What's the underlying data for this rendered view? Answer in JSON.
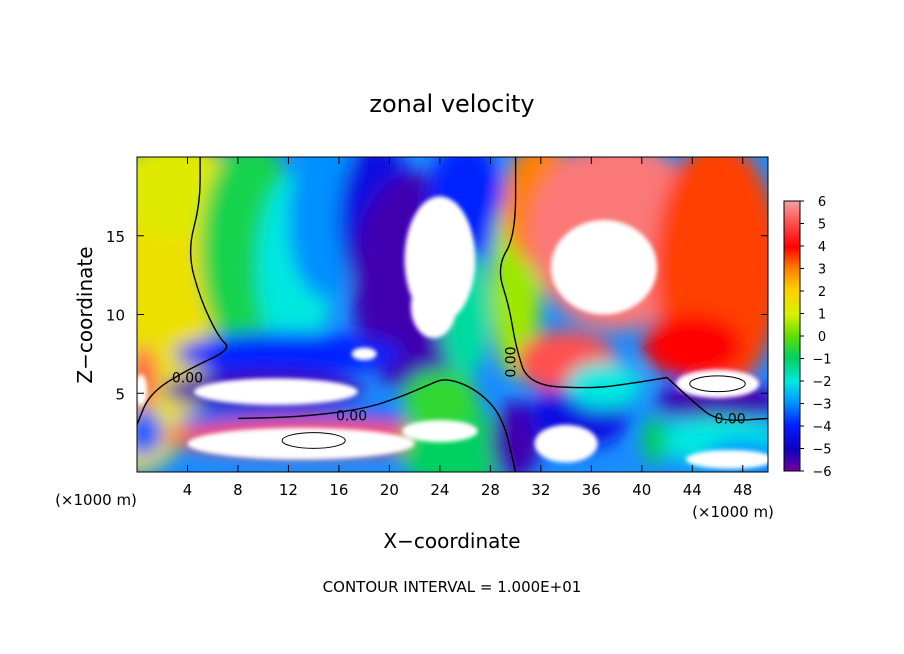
{
  "chart_data": {
    "type": "heatmap",
    "title": "zonal velocity",
    "xlabel": "X−coordinate",
    "ylabel": "Z−coordinate",
    "x_unit_left": "(×1000 m)",
    "x_unit_right": "(×1000 m)",
    "xlim": [
      0,
      50
    ],
    "ylim": [
      0,
      20
    ],
    "x_ticks": [
      4,
      8,
      12,
      16,
      20,
      24,
      28,
      32,
      36,
      40,
      44,
      48
    ],
    "y_ticks": [
      5,
      10,
      15
    ],
    "colorbar": {
      "ticks": [
        6,
        5,
        4,
        3,
        2,
        1,
        0,
        -1,
        -2,
        -3,
        -4,
        -5,
        -6
      ],
      "range": [
        -6,
        6
      ]
    },
    "contour_labels": [
      {
        "text": "0.00",
        "x": 4,
        "y": 6
      },
      {
        "text": "0.00",
        "x": 17,
        "y": 3.6
      },
      {
        "text": "0.00",
        "x": 30,
        "y": 7.3
      },
      {
        "text": "0.00",
        "x": 47,
        "y": 3.4
      }
    ],
    "regions": [
      {
        "x": 0,
        "y": 10,
        "value": 1.5,
        "rx": 6,
        "ry": 10
      },
      {
        "x": 3,
        "y": 18,
        "value": 1.2,
        "rx": 5,
        "ry": 3
      },
      {
        "x": 9,
        "y": 14,
        "value": -0.8,
        "rx": 4,
        "ry": 7
      },
      {
        "x": 12.5,
        "y": 13,
        "value": -2,
        "rx": 3,
        "ry": 6
      },
      {
        "x": 15,
        "y": 16,
        "value": -3,
        "rx": 3,
        "ry": 5
      },
      {
        "x": 19,
        "y": 16,
        "value": -4.5,
        "rx": 3,
        "ry": 5
      },
      {
        "x": 22,
        "y": 12,
        "value": -5.5,
        "rx": 5,
        "ry": 7
      },
      {
        "x": 26,
        "y": 17,
        "value": -4,
        "rx": 3,
        "ry": 4
      },
      {
        "x": 26,
        "y": 10,
        "value": -1.5,
        "rx": 2,
        "ry": 4
      },
      {
        "x": 30,
        "y": 12,
        "value": 0.5,
        "rx": 2,
        "ry": 6
      },
      {
        "x": 32,
        "y": 17,
        "value": 3,
        "rx": 3,
        "ry": 4
      },
      {
        "x": 38,
        "y": 15,
        "value": 5.5,
        "rx": 7,
        "ry": 6
      },
      {
        "x": 46,
        "y": 13,
        "value": 3.5,
        "rx": 5,
        "ry": 8
      },
      {
        "x": 34,
        "y": 7,
        "value": 5,
        "rx": 4,
        "ry": 2
      },
      {
        "x": 44,
        "y": 8,
        "value": 4,
        "rx": 4,
        "ry": 2
      },
      {
        "x": 12,
        "y": 7.5,
        "value": -4,
        "rx": 9,
        "ry": 1.4
      },
      {
        "x": 10,
        "y": 5.2,
        "value": -5.5,
        "rx": 8,
        "ry": 1.2
      },
      {
        "x": 13,
        "y": 3.3,
        "value": -3.5,
        "rx": 10,
        "ry": 0.8
      },
      {
        "x": 14,
        "y": 2.2,
        "value": 5,
        "rx": 12,
        "ry": 1.1
      },
      {
        "x": 25,
        "y": 1.5,
        "value": -1,
        "rx": 4,
        "ry": 3
      },
      {
        "x": 24,
        "y": 4.5,
        "value": -0.5,
        "rx": 3,
        "ry": 2
      },
      {
        "x": 30,
        "y": 2,
        "value": -5.5,
        "rx": 2,
        "ry": 2.5
      },
      {
        "x": 35,
        "y": 3.5,
        "value": -4.5,
        "rx": 4,
        "ry": 2
      },
      {
        "x": 37,
        "y": 5.5,
        "value": -2,
        "rx": 3,
        "ry": 1.5
      },
      {
        "x": 46,
        "y": 4.5,
        "value": -5.5,
        "rx": 5,
        "ry": 1.2
      },
      {
        "x": 46,
        "y": 2,
        "value": -2,
        "rx": 5,
        "ry": 1.5
      },
      {
        "x": 48,
        "y": 1,
        "value": -3,
        "rx": 3,
        "ry": 1
      },
      {
        "x": 0.5,
        "y": 6,
        "value": 5,
        "rx": 1,
        "ry": 2
      },
      {
        "x": 0.5,
        "y": 2.5,
        "value": -3.5,
        "rx": 1.5,
        "ry": 1.5
      },
      {
        "x": 41,
        "y": 2,
        "value": -1,
        "rx": 1,
        "ry": 1.5
      }
    ],
    "white_regions": [
      {
        "x": 24,
        "y": 13.5,
        "rx": 2.8,
        "ry": 4
      },
      {
        "x": 23.5,
        "y": 10.5,
        "rx": 1.8,
        "ry": 2
      },
      {
        "x": 37,
        "y": 13,
        "rx": 4.2,
        "ry": 3
      },
      {
        "x": 11,
        "y": 5.1,
        "rx": 6.5,
        "ry": 0.85
      },
      {
        "x": 13,
        "y": 1.8,
        "rx": 9,
        "ry": 1
      },
      {
        "x": 24,
        "y": 2.6,
        "rx": 3,
        "ry": 0.7
      },
      {
        "x": 34,
        "y": 1.8,
        "rx": 2.5,
        "ry": 1.2
      },
      {
        "x": 46,
        "y": 5.6,
        "rx": 3.3,
        "ry": 0.9
      },
      {
        "x": 47,
        "y": 0.8,
        "rx": 3.5,
        "ry": 0.6
      },
      {
        "x": 0.3,
        "y": 5.2,
        "rx": 0.5,
        "ry": 1
      },
      {
        "x": 18,
        "y": 7.5,
        "rx": 1,
        "ry": 0.4
      }
    ],
    "contour_lines": [
      [
        [
          5,
          20
        ],
        [
          5,
          17
        ],
        [
          4,
          14
        ],
        [
          5,
          11
        ],
        [
          6.5,
          8.5
        ],
        [
          7.5,
          7.8
        ],
        [
          4,
          6.5
        ],
        [
          1,
          5
        ],
        [
          0,
          3
        ]
      ],
      [
        [
          8,
          3.4
        ],
        [
          13,
          3.5
        ],
        [
          18,
          4
        ],
        [
          21,
          4.8
        ],
        [
          23,
          5.5
        ],
        [
          24.5,
          6
        ],
        [
          27,
          5.2
        ],
        [
          29,
          3.5
        ],
        [
          30,
          0
        ]
      ],
      [
        [
          30,
          20
        ],
        [
          30,
          15
        ],
        [
          28.5,
          13
        ],
        [
          29.5,
          10.5
        ],
        [
          30,
          8
        ],
        [
          31,
          5.5
        ],
        [
          36,
          5.3
        ],
        [
          39,
          5.6
        ],
        [
          42,
          6
        ]
      ],
      [
        [
          42,
          6
        ],
        [
          44,
          4.5
        ],
        [
          46,
          3.2
        ],
        [
          50,
          3.4
        ]
      ]
    ]
  }
}
